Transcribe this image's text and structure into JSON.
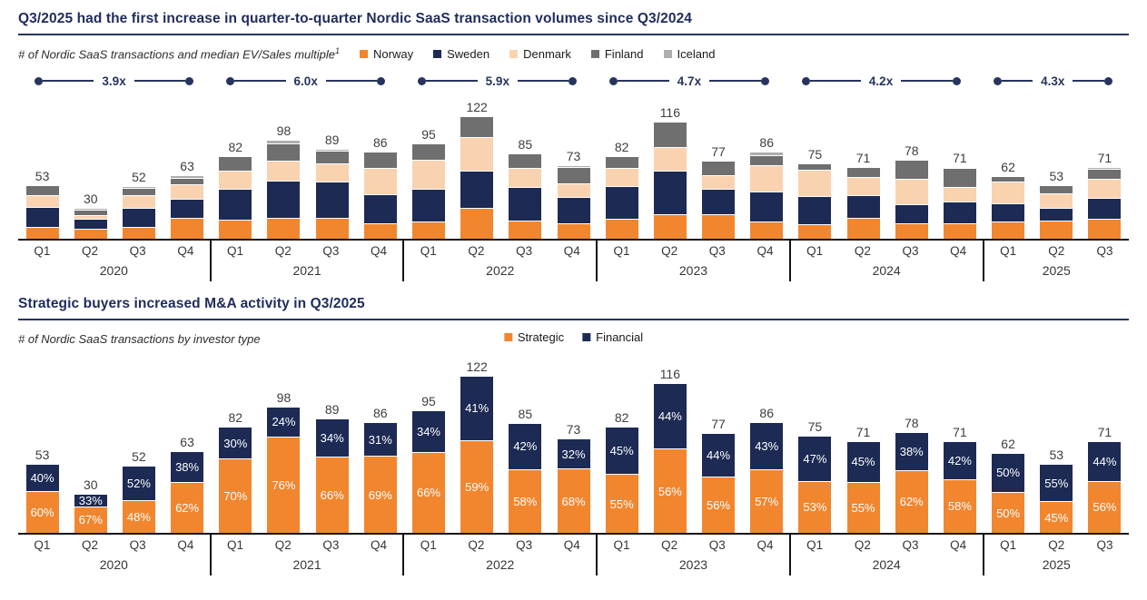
{
  "colors": {
    "norway": "#f1862f",
    "sweden": "#1c2a54",
    "denmark": "#f9d2af",
    "finland": "#6f6f6f",
    "iceland": "#adadad",
    "strategic": "#f1862f",
    "financial": "#1c2a54",
    "title_navy": "#1f2c5c",
    "axis_black": "#141414"
  },
  "top_chart": {
    "title": "Q3/2025 had the first increase in quarter-to-quarter Nordic SaaS transaction volumes since Q3/2024",
    "subtitle": "# of Nordic SaaS transactions and median EV/Sales multiple",
    "footnote_marker": "1",
    "legend": [
      {
        "label": "Norway",
        "color": "#f1862f"
      },
      {
        "label": "Sweden",
        "color": "#1c2a54"
      },
      {
        "label": "Denmark",
        "color": "#f9d2af"
      },
      {
        "label": "Finland",
        "color": "#6f6f6f"
      },
      {
        "label": "Iceland",
        "color": "#adadad"
      }
    ],
    "multiples": [
      {
        "year": "2020",
        "label": "3.9x",
        "quarters": 4
      },
      {
        "year": "2021",
        "label": "6.0x",
        "quarters": 4
      },
      {
        "year": "2022",
        "label": "5.9x",
        "quarters": 4
      },
      {
        "year": "2023",
        "label": "4.7x",
        "quarters": 4
      },
      {
        "year": "2024",
        "label": "4.2x",
        "quarters": 4
      },
      {
        "year": "2025",
        "label": "4.3x",
        "quarters": 3
      }
    ]
  },
  "bottom_chart": {
    "title": "Strategic buyers increased M&A activity in Q3/2025",
    "subtitle": "# of Nordic SaaS transactions by investor type",
    "legend": [
      {
        "label": "Strategic",
        "color": "#f1862f"
      },
      {
        "label": "Financial",
        "color": "#1c2a54"
      }
    ]
  },
  "chart_data": [
    {
      "id": "nordic-saas-transactions-by-country",
      "type": "bar",
      "stacked": true,
      "title": "Q3/2025 had the first increase in quarter-to-quarter Nordic SaaS transaction volumes since Q3/2024",
      "subtitle": "# of Nordic SaaS transactions and median EV/Sales multiple",
      "legend_position": "top",
      "grid": false,
      "groups": [
        {
          "year": "2020",
          "quarters": [
            "Q1",
            "Q2",
            "Q3",
            "Q4"
          ]
        },
        {
          "year": "2021",
          "quarters": [
            "Q1",
            "Q2",
            "Q3",
            "Q4"
          ]
        },
        {
          "year": "2022",
          "quarters": [
            "Q1",
            "Q2",
            "Q3",
            "Q4"
          ]
        },
        {
          "year": "2023",
          "quarters": [
            "Q1",
            "Q2",
            "Q3",
            "Q4"
          ]
        },
        {
          "year": "2024",
          "quarters": [
            "Q1",
            "Q2",
            "Q3",
            "Q4"
          ]
        },
        {
          "year": "2025",
          "quarters": [
            "Q1",
            "Q2",
            "Q3"
          ]
        }
      ],
      "totals": [
        53,
        30,
        52,
        63,
        82,
        98,
        89,
        86,
        95,
        122,
        85,
        73,
        82,
        116,
        77,
        86,
        75,
        71,
        78,
        71,
        62,
        53,
        71
      ],
      "median_ev_sales_multiple_by_year": {
        "2020": "3.9x",
        "2021": "6.0x",
        "2022": "5.9x",
        "2023": "4.7x",
        "2024": "4.2x",
        "2025": "4.3x"
      },
      "series": [
        {
          "name": "Norway",
          "color": "#f1862f",
          "values": [
            11,
            9,
            11,
            20,
            18,
            20,
            20,
            15,
            16,
            30,
            17,
            15,
            19,
            24,
            24,
            16,
            14,
            20,
            15,
            15,
            16,
            17,
            19
          ]
        },
        {
          "name": "Sweden",
          "color": "#1c2a54",
          "values": [
            20,
            10,
            19,
            19,
            31,
            37,
            36,
            29,
            33,
            37,
            34,
            26,
            33,
            43,
            25,
            30,
            28,
            23,
            19,
            21,
            19,
            13,
            21
          ]
        },
        {
          "name": "Denmark",
          "color": "#f9d2af",
          "values": [
            12,
            4,
            13,
            15,
            18,
            20,
            19,
            26,
            29,
            34,
            19,
            14,
            18,
            24,
            14,
            27,
            26,
            18,
            25,
            15,
            21,
            15,
            19
          ]
        },
        {
          "name": "Finland",
          "color": "#6f6f6f",
          "values": [
            10,
            5,
            7,
            6,
            15,
            18,
            12,
            16,
            17,
            21,
            15,
            16,
            12,
            25,
            14,
            10,
            7,
            10,
            19,
            19,
            6,
            8,
            10
          ]
        },
        {
          "name": "Iceland",
          "color": "#adadad",
          "values": [
            0,
            2,
            2,
            3,
            0,
            3,
            2,
            0,
            0,
            0,
            0,
            2,
            0,
            0,
            0,
            3,
            0,
            0,
            0,
            1,
            0,
            0,
            2
          ]
        }
      ]
    },
    {
      "id": "nordic-saas-transactions-by-investor-type",
      "type": "bar",
      "stacked": true,
      "unit": "percent-of-total",
      "title": "Strategic buyers increased M&A activity in Q3/2025",
      "subtitle": "# of Nordic SaaS transactions by investor type",
      "legend_position": "top-center",
      "grid": false,
      "groups": [
        {
          "year": "2020",
          "quarters": [
            "Q1",
            "Q2",
            "Q3",
            "Q4"
          ]
        },
        {
          "year": "2021",
          "quarters": [
            "Q1",
            "Q2",
            "Q3",
            "Q4"
          ]
        },
        {
          "year": "2022",
          "quarters": [
            "Q1",
            "Q2",
            "Q3",
            "Q4"
          ]
        },
        {
          "year": "2023",
          "quarters": [
            "Q1",
            "Q2",
            "Q3",
            "Q4"
          ]
        },
        {
          "year": "2024",
          "quarters": [
            "Q1",
            "Q2",
            "Q3",
            "Q4"
          ]
        },
        {
          "year": "2025",
          "quarters": [
            "Q1",
            "Q2",
            "Q3"
          ]
        }
      ],
      "totals": [
        53,
        30,
        52,
        63,
        82,
        98,
        89,
        86,
        95,
        122,
        85,
        73,
        82,
        116,
        77,
        86,
        75,
        71,
        78,
        71,
        62,
        53,
        71
      ],
      "series": [
        {
          "name": "Strategic",
          "color": "#f1862f",
          "values_pct": [
            60,
            67,
            48,
            62,
            70,
            76,
            66,
            69,
            66,
            59,
            58,
            68,
            55,
            56,
            56,
            57,
            53,
            55,
            62,
            58,
            50,
            45,
            56
          ]
        },
        {
          "name": "Financial",
          "color": "#1c2a54",
          "values_pct": [
            40,
            33,
            52,
            38,
            30,
            24,
            34,
            31,
            34,
            41,
            42,
            32,
            45,
            44,
            44,
            43,
            47,
            45,
            38,
            42,
            50,
            55,
            44
          ]
        }
      ]
    }
  ]
}
